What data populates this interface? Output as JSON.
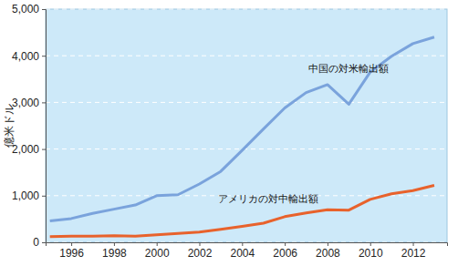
{
  "chart_data": {
    "type": "line",
    "y_label": "億米ドル",
    "x": [
      1995,
      1996,
      1997,
      1998,
      1999,
      2000,
      2001,
      2002,
      2003,
      2004,
      2005,
      2006,
      2007,
      2008,
      2009,
      2010,
      2011,
      2012,
      2013
    ],
    "series": [
      {
        "name": "中国の対米輸出額",
        "color": "#7aa3dc",
        "values": [
          460,
          510,
          620,
          710,
          800,
          1000,
          1020,
          1250,
          1520,
          1970,
          2430,
          2880,
          3210,
          3380,
          2960,
          3650,
          3990,
          4260,
          4400
        ]
      },
      {
        "name": "アメリカの対中輸出額",
        "color": "#e8622c",
        "values": [
          120,
          130,
          130,
          140,
          130,
          160,
          190,
          220,
          280,
          340,
          410,
          550,
          630,
          700,
          690,
          920,
          1040,
          1110,
          1220
        ]
      }
    ],
    "xlim": [
      1994.8,
      2013.6
    ],
    "xticks": [
      1996,
      1998,
      2000,
      2002,
      2004,
      2006,
      2008,
      2010,
      2012
    ],
    "ylim": [
      0,
      5000
    ],
    "yticks": [
      0,
      {
        "value": 1000,
        "label": "1,000"
      },
      {
        "value": 2000,
        "label": "2,000"
      },
      {
        "value": 3000,
        "label": "3,000"
      },
      {
        "value": 4000,
        "label": "4,000"
      },
      {
        "value": 5000,
        "label": "5,000"
      }
    ],
    "grid": true
  }
}
